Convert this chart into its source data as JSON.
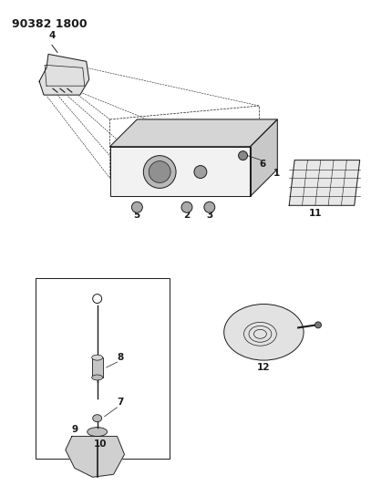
{
  "title": "90382 1800",
  "bg_color": "#ffffff",
  "line_color": "#1a1a1a",
  "title_fontsize": 9,
  "label_fontsize": 7.5,
  "figsize": [
    4.07,
    5.33
  ],
  "dpi": 100
}
